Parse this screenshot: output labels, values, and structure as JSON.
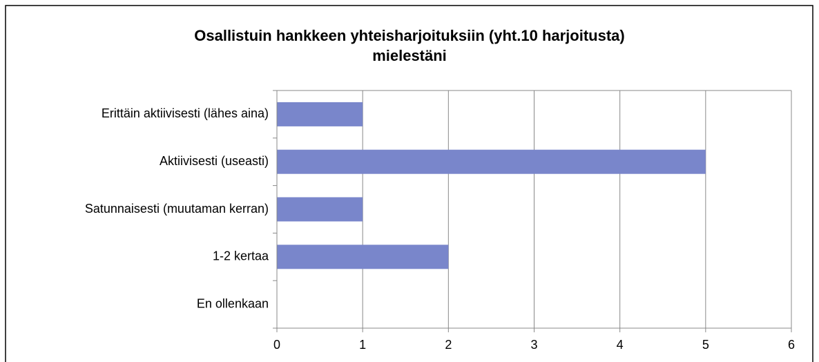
{
  "chart_data": {
    "type": "hbar",
    "title": [
      "Osallistuin hankkeen yhteisharjoituksiin (yht.10 harjoitusta)",
      "mielestäni"
    ],
    "categories": [
      "Erittäin aktiivisesti (lähes aina)",
      "Aktiivisesti (useasti)",
      "Satunnaisesti (muutaman kerran)",
      "1-2 kertaa",
      "En ollenkaan"
    ],
    "values": [
      1,
      5,
      1,
      2,
      0
    ],
    "color": "#7986cb",
    "xlim": [
      0,
      6
    ],
    "xticks": [
      0,
      1,
      2,
      3,
      4,
      5,
      6
    ],
    "grid": true
  }
}
